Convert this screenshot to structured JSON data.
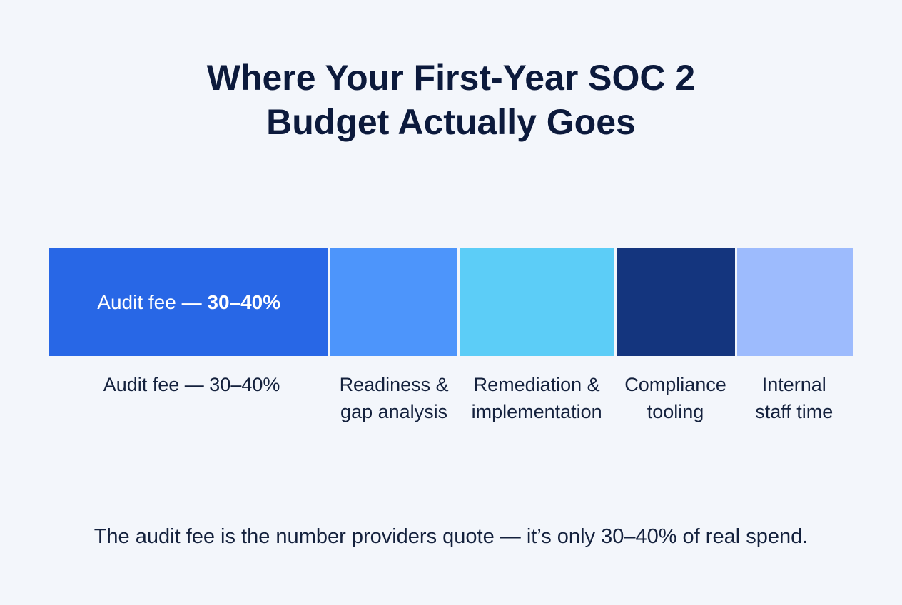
{
  "title": {
    "line1": "Where Your First-Year SOC 2",
    "line2": "Budget Actually Goes"
  },
  "chart_data": {
    "type": "bar",
    "orientation": "horizontal-stacked",
    "categories": [
      "Audit fee — 30–40%",
      "Readiness & gap analysis",
      "Remediation & implementation",
      "Compliance tooling",
      "Internal staff time"
    ],
    "segments": [
      {
        "name_lines": [
          "Audit fee — 30–40%"
        ],
        "color": "#2867e6",
        "share_pct": 35
      },
      {
        "name_lines": [
          "Readiness &",
          "gap analysis"
        ],
        "color": "#4d95fb",
        "share_pct": 16
      },
      {
        "name_lines": [
          "Remediation &",
          "implementation"
        ],
        "color": "#5ccdf7",
        "share_pct": 19.5
      },
      {
        "name_lines": [
          "Compliance",
          "tooling"
        ],
        "color": "#14357e",
        "share_pct": 15
      },
      {
        "name_lines": [
          "Internal",
          "staff time"
        ],
        "color": "#9dbbfd",
        "share_pct": 14.5
      }
    ],
    "inbar_label": {
      "prefix": "Audit fee — ",
      "value": "30–40%"
    },
    "legend": "none"
  },
  "footnote": "The audit fee is the number providers quote — it’s only 30–40% of real spend."
}
